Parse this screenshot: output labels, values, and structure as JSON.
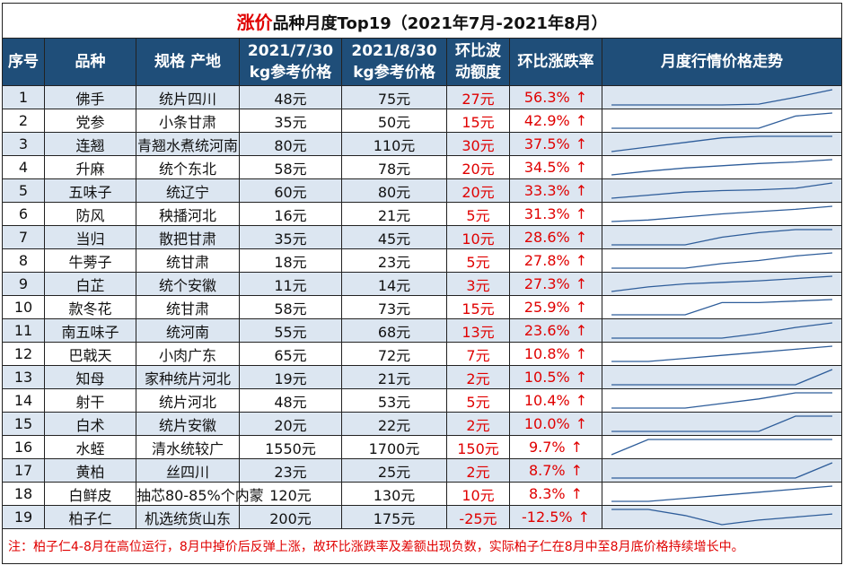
{
  "title": {
    "highlight": "涨价",
    "rest": "品种月度Top19（2021年7月-2021年8月）"
  },
  "headers": {
    "index": "序号",
    "name": "品种",
    "spec": "规格 产地",
    "price_jul_1": "2021/7/30",
    "price_jul_2": "kg参考价格",
    "price_aug_1": "2021/8/30",
    "price_aug_2": "kg参考价格",
    "diff_1": "环比波",
    "diff_2": "动额度",
    "rate": "环比涨跌率",
    "trend": "月度行情价格走势"
  },
  "arrow": "↑",
  "colors": {
    "header_bg": "#1f4e79",
    "row_stripe": "#dce6f1",
    "accent_red": "#e00000",
    "spark_line": "#2e5d9a"
  },
  "rows": [
    {
      "index": "1",
      "name": "佛手",
      "spec": "统片四川",
      "jul": "48元",
      "aug": "75元",
      "diff": "27元",
      "rate": "56.3%",
      "trend_points": [
        0,
        0,
        0,
        0,
        0.05,
        0.5,
        1
      ]
    },
    {
      "index": "2",
      "name": "党参",
      "spec": "小条甘肃",
      "jul": "35元",
      "aug": "50元",
      "diff": "15元",
      "rate": "42.9%",
      "trend_points": [
        0,
        0,
        0,
        0,
        0,
        0.8,
        1
      ]
    },
    {
      "index": "3",
      "name": "连翘",
      "spec": "青翘水煮统河南",
      "jul": "80元",
      "aug": "110元",
      "diff": "30元",
      "rate": "37.5%",
      "trend_points": [
        0,
        0.3,
        0.6,
        0.9,
        1,
        1,
        1
      ]
    },
    {
      "index": "4",
      "name": "升麻",
      "spec": "统个东北",
      "jul": "58元",
      "aug": "78元",
      "diff": "20元",
      "rate": "34.5%",
      "trend_points": [
        0,
        0.25,
        0.45,
        0.6,
        0.75,
        0.85,
        1
      ]
    },
    {
      "index": "5",
      "name": "五味子",
      "spec": "统辽宁",
      "jul": "60元",
      "aug": "80元",
      "diff": "20元",
      "rate": "33.3%",
      "trend_points": [
        0,
        0.2,
        0.4,
        0.5,
        0.55,
        0.65,
        1
      ]
    },
    {
      "index": "6",
      "name": "防风",
      "spec": "秧播河北",
      "jul": "16元",
      "aug": "21元",
      "diff": "5元",
      "rate": "31.3%",
      "trend_points": [
        0,
        0.1,
        0.3,
        0.5,
        0.65,
        0.8,
        1
      ]
    },
    {
      "index": "7",
      "name": "当归",
      "spec": "散把甘肃",
      "jul": "35元",
      "aug": "45元",
      "diff": "10元",
      "rate": "28.6%",
      "trend_points": [
        0,
        0,
        0,
        0.5,
        0.8,
        1,
        1
      ]
    },
    {
      "index": "8",
      "name": "牛蒡子",
      "spec": "统甘肃",
      "jul": "18元",
      "aug": "23元",
      "diff": "5元",
      "rate": "27.8%",
      "trend_points": [
        0,
        0,
        0,
        0.3,
        0.5,
        0.8,
        1
      ]
    },
    {
      "index": "9",
      "name": "白芷",
      "spec": "统个安徽",
      "jul": "11元",
      "aug": "14元",
      "diff": "3元",
      "rate": "27.3%",
      "trend_points": [
        0,
        0.3,
        0.5,
        0.6,
        0.7,
        0.85,
        1
      ]
    },
    {
      "index": "10",
      "name": "款冬花",
      "spec": "统甘肃",
      "jul": "58元",
      "aug": "73元",
      "diff": "15元",
      "rate": "25.9%",
      "trend_points": [
        0,
        0,
        0,
        0.8,
        0.8,
        0.9,
        1
      ]
    },
    {
      "index": "11",
      "name": "南五味子",
      "spec": "统河南",
      "jul": "55元",
      "aug": "68元",
      "diff": "13元",
      "rate": "23.6%",
      "trend_points": [
        0,
        0,
        0,
        0,
        0.3,
        0.7,
        1
      ]
    },
    {
      "index": "12",
      "name": "巴戟天",
      "spec": "小肉广东",
      "jul": "65元",
      "aug": "72元",
      "diff": "7元",
      "rate": "10.8%",
      "trend_points": [
        0,
        0,
        0.2,
        0.4,
        0.6,
        0.8,
        1
      ]
    },
    {
      "index": "13",
      "name": "知母",
      "spec": "家种统片河北",
      "jul": "19元",
      "aug": "21元",
      "diff": "2元",
      "rate": "10.5%",
      "trend_points": [
        0,
        0,
        0,
        0,
        0,
        0,
        1
      ]
    },
    {
      "index": "14",
      "name": "射干",
      "spec": "统片河北",
      "jul": "48元",
      "aug": "53元",
      "diff": "5元",
      "rate": "10.4%",
      "trend_points": [
        0,
        0,
        0,
        0.3,
        0.6,
        1,
        1
      ]
    },
    {
      "index": "15",
      "name": "白术",
      "spec": "统片安徽",
      "jul": "20元",
      "aug": "22元",
      "diff": "2元",
      "rate": "10.0%",
      "trend_points": [
        0,
        0,
        0,
        0,
        0,
        1,
        1
      ]
    },
    {
      "index": "16",
      "name": "水蛭",
      "spec": "清水统较广",
      "jul": "1550元",
      "aug": "1700元",
      "diff": "150元",
      "rate": "9.7%",
      "trend_points": [
        0,
        1,
        1,
        1,
        1,
        1,
        1
      ]
    },
    {
      "index": "17",
      "name": "黄柏",
      "spec": "丝四川",
      "jul": "23元",
      "aug": "25元",
      "diff": "2元",
      "rate": "8.7%",
      "trend_points": [
        0,
        0,
        0,
        0,
        0,
        0,
        1
      ]
    },
    {
      "index": "18",
      "name": "白鲜皮",
      "spec": "抽芯80-85%个内蒙",
      "jul": "120元",
      "aug": "130元",
      "diff": "10元",
      "rate": "8.3%",
      "trend_points": [
        0,
        0,
        0.2,
        0.4,
        0.6,
        0.8,
        1
      ]
    },
    {
      "index": "19",
      "name": "柏子仁",
      "spec": "机选统货山东",
      "jul": "200元",
      "aug": "175元",
      "diff": "-25元",
      "rate": "-12.5%",
      "trend_points": [
        1,
        1,
        0.6,
        0,
        0.3,
        0.5,
        0.7
      ]
    }
  ],
  "note": "注：柏子仁4-8月在高位运行，8月中掉价后反弹上涨，故环比涨跌率及差额出现负数，实际柏子仁在8月中至8月底价格持续增长中。"
}
